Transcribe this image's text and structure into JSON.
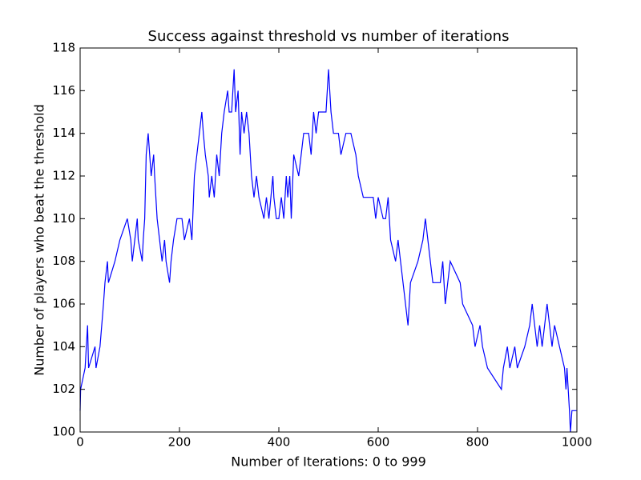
{
  "chart_data": {
    "type": "line",
    "title": "Success against threshold vs number of iterations",
    "x_label": "Number of Iterations: 0 to 999",
    "y_label": "Number of players who beat the threshold",
    "color": "#0000ff",
    "x": [
      0,
      1,
      10,
      15,
      17,
      30,
      32,
      40,
      47,
      50,
      55,
      57,
      70,
      80,
      95,
      102,
      105,
      110,
      115,
      117,
      125,
      127,
      130,
      133,
      137,
      140,
      143,
      148,
      150,
      155,
      160,
      165,
      170,
      173,
      180,
      183,
      188,
      195,
      205,
      210,
      220,
      225,
      230,
      235,
      240,
      245,
      248,
      252,
      258,
      260,
      265,
      270,
      275,
      280,
      285,
      290,
      297,
      300,
      305,
      310,
      313,
      318,
      322,
      325,
      330,
      335,
      340,
      345,
      350,
      355,
      360,
      370,
      375,
      380,
      388,
      390,
      395,
      400,
      405,
      410,
      415,
      418,
      422,
      425,
      430,
      440,
      450,
      460,
      465,
      470,
      475,
      480,
      495,
      500,
      505,
      510,
      520,
      525,
      535,
      545,
      555,
      560,
      570,
      590,
      595,
      600,
      610,
      615,
      620,
      625,
      635,
      640,
      645,
      650,
      655,
      660,
      665,
      680,
      690,
      695,
      700,
      705,
      710,
      725,
      730,
      735,
      740,
      745,
      765,
      770,
      790,
      795,
      805,
      810,
      820,
      848,
      852,
      860,
      865,
      875,
      880,
      895,
      905,
      910,
      915,
      920,
      925,
      930,
      935,
      940,
      945,
      950,
      955,
      965,
      975,
      978,
      980,
      985,
      987,
      990,
      999
    ],
    "values": [
      101,
      102,
      103,
      105,
      103,
      104,
      103,
      104,
      106,
      107,
      108,
      107,
      108,
      109,
      110,
      109,
      108,
      109,
      110,
      109,
      108,
      109,
      110,
      113,
      114,
      113,
      112,
      113,
      112,
      110,
      109,
      108,
      109,
      108,
      107,
      108,
      109,
      110,
      110,
      109,
      110,
      109,
      112,
      113,
      114,
      115,
      114,
      113,
      112,
      111,
      112,
      111,
      113,
      112,
      114,
      115,
      116,
      115,
      115,
      117,
      115,
      116,
      113,
      115,
      114,
      115,
      114,
      112,
      111,
      112,
      111,
      110,
      111,
      110,
      112,
      111,
      110,
      110,
      111,
      110,
      112,
      111,
      112,
      110,
      113,
      112,
      114,
      114,
      113,
      115,
      114,
      115,
      115,
      117,
      115,
      114,
      114,
      113,
      114,
      114,
      113,
      112,
      111,
      111,
      110,
      111,
      110,
      110,
      111,
      109,
      108,
      109,
      108,
      107,
      106,
      105,
      107,
      108,
      109,
      110,
      109,
      108,
      107,
      107,
      108,
      106,
      107,
      108,
      107,
      106,
      105,
      104,
      105,
      104,
      103,
      102,
      103,
      104,
      103,
      104,
      103,
      104,
      105,
      106,
      105,
      104,
      105,
      104,
      105,
      106,
      105,
      104,
      105,
      104,
      103,
      102,
      103,
      101,
      100,
      101,
      101
    ],
    "xlim": [
      0,
      1000
    ],
    "xticks": [
      0,
      200,
      400,
      600,
      800,
      1000
    ],
    "ylim": [
      100,
      118
    ],
    "yticks": [
      100,
      102,
      104,
      106,
      108,
      110,
      112,
      114,
      116,
      118
    ]
  }
}
